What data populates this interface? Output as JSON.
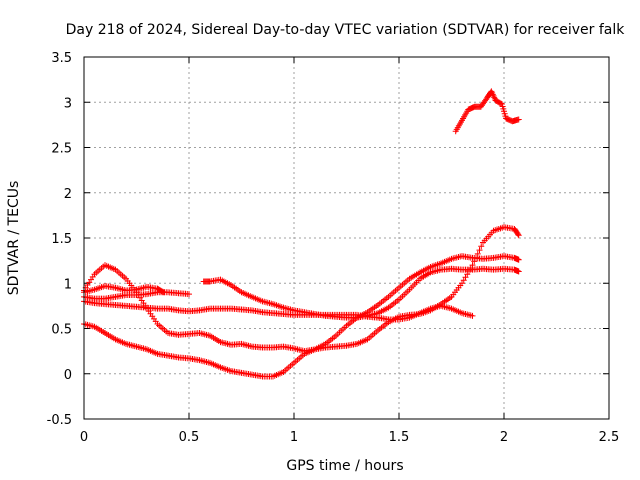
{
  "chart_data": {
    "type": "scatter",
    "title": "Day 218 of 2024, Sidereal Day-to-day VTEC variation (SDTVAR) for receiver falk",
    "xlabel": "GPS time / hours",
    "ylabel": "SDTVAR / TECUs",
    "xlim": [
      0,
      2.5
    ],
    "ylim": [
      -0.5,
      3.5
    ],
    "xticks": [
      "0",
      "0.5",
      "1",
      "1.5",
      "2",
      "2.5"
    ],
    "yticks": [
      "-0.5",
      "0",
      "0.5",
      "1",
      "1.5",
      "2",
      "2.5",
      "3",
      "3.5"
    ],
    "grid": true,
    "marker": "+",
    "color": "#ff0000",
    "series": [
      {
        "name": "track-1",
        "points": [
          [
            0,
            0.55
          ],
          [
            0.05,
            0.52
          ],
          [
            0.1,
            0.45
          ],
          [
            0.15,
            0.38
          ],
          [
            0.2,
            0.33
          ],
          [
            0.25,
            0.3
          ],
          [
            0.3,
            0.27
          ],
          [
            0.35,
            0.22
          ],
          [
            0.4,
            0.2
          ],
          [
            0.45,
            0.18
          ],
          [
            0.5,
            0.17
          ],
          [
            0.55,
            0.15
          ],
          [
            0.6,
            0.12
          ],
          [
            0.65,
            0.07
          ],
          [
            0.7,
            0.03
          ],
          [
            0.75,
            0.01
          ],
          [
            0.8,
            -0.01
          ],
          [
            0.85,
            -0.03
          ],
          [
            0.9,
            -0.03
          ],
          [
            0.95,
            0.02
          ],
          [
            1.0,
            0.12
          ],
          [
            1.05,
            0.22
          ],
          [
            1.1,
            0.27
          ],
          [
            1.15,
            0.29
          ],
          [
            1.2,
            0.3
          ],
          [
            1.25,
            0.31
          ],
          [
            1.3,
            0.33
          ],
          [
            1.35,
            0.38
          ],
          [
            1.4,
            0.48
          ],
          [
            1.45,
            0.57
          ],
          [
            1.5,
            0.63
          ],
          [
            1.55,
            0.65
          ],
          [
            1.6,
            0.66
          ],
          [
            1.65,
            0.7
          ],
          [
            1.7,
            0.77
          ],
          [
            1.75,
            0.85
          ],
          [
            1.8,
            1.0
          ],
          [
            1.85,
            1.2
          ],
          [
            1.9,
            1.45
          ],
          [
            1.95,
            1.58
          ],
          [
            2.0,
            1.62
          ],
          [
            2.05,
            1.6
          ],
          [
            2.07,
            1.53
          ]
        ]
      },
      {
        "name": "track-2",
        "points": [
          [
            0,
            0.92
          ],
          [
            0.05,
            1.1
          ],
          [
            0.1,
            1.2
          ],
          [
            0.15,
            1.15
          ],
          [
            0.2,
            1.05
          ],
          [
            0.25,
            0.9
          ],
          [
            0.3,
            0.72
          ],
          [
            0.35,
            0.55
          ],
          [
            0.4,
            0.45
          ],
          [
            0.45,
            0.43
          ],
          [
            0.5,
            0.44
          ],
          [
            0.55,
            0.45
          ],
          [
            0.6,
            0.42
          ],
          [
            0.65,
            0.35
          ],
          [
            0.7,
            0.32
          ],
          [
            0.75,
            0.33
          ],
          [
            0.8,
            0.3
          ],
          [
            0.85,
            0.29
          ],
          [
            0.9,
            0.29
          ],
          [
            0.95,
            0.3
          ],
          [
            1.0,
            0.28
          ],
          [
            1.05,
            0.25
          ],
          [
            1.1,
            0.27
          ],
          [
            1.15,
            0.33
          ],
          [
            1.2,
            0.42
          ],
          [
            1.25,
            0.53
          ],
          [
            1.3,
            0.62
          ],
          [
            1.35,
            0.68
          ],
          [
            1.4,
            0.76
          ],
          [
            1.45,
            0.85
          ],
          [
            1.5,
            0.95
          ],
          [
            1.55,
            1.05
          ],
          [
            1.6,
            1.12
          ],
          [
            1.65,
            1.18
          ],
          [
            1.7,
            1.22
          ],
          [
            1.75,
            1.27
          ],
          [
            1.8,
            1.3
          ],
          [
            1.85,
            1.28
          ],
          [
            1.9,
            1.27
          ],
          [
            1.95,
            1.28
          ],
          [
            2.0,
            1.3
          ],
          [
            2.05,
            1.28
          ],
          [
            2.07,
            1.26
          ]
        ]
      },
      {
        "name": "track-3",
        "points": [
          [
            0,
            0.85
          ],
          [
            0.05,
            0.83
          ],
          [
            0.1,
            0.83
          ],
          [
            0.15,
            0.85
          ],
          [
            0.2,
            0.87
          ],
          [
            0.25,
            0.87
          ],
          [
            0.3,
            0.88
          ],
          [
            0.35,
            0.9
          ],
          [
            0.4,
            0.9
          ],
          [
            0.45,
            0.89
          ],
          [
            0.5,
            0.88
          ]
        ]
      },
      {
        "name": "track-4",
        "points": [
          [
            0.57,
            1.02
          ],
          [
            0.6,
            1.02
          ],
          [
            0.65,
            1.04
          ],
          [
            0.7,
            0.98
          ],
          [
            0.75,
            0.9
          ],
          [
            0.8,
            0.85
          ],
          [
            0.85,
            0.8
          ],
          [
            0.9,
            0.77
          ],
          [
            0.95,
            0.73
          ],
          [
            1.0,
            0.7
          ],
          [
            1.05,
            0.68
          ],
          [
            1.1,
            0.66
          ],
          [
            1.15,
            0.64
          ],
          [
            1.2,
            0.63
          ],
          [
            1.25,
            0.62
          ],
          [
            1.3,
            0.62
          ],
          [
            1.35,
            0.64
          ],
          [
            1.4,
            0.67
          ],
          [
            1.45,
            0.73
          ],
          [
            1.5,
            0.82
          ],
          [
            1.55,
            0.93
          ],
          [
            1.6,
            1.05
          ],
          [
            1.65,
            1.12
          ],
          [
            1.7,
            1.15
          ],
          [
            1.75,
            1.16
          ],
          [
            1.8,
            1.15
          ],
          [
            1.85,
            1.15
          ],
          [
            1.9,
            1.16
          ],
          [
            1.95,
            1.15
          ],
          [
            2.0,
            1.16
          ],
          [
            2.05,
            1.15
          ],
          [
            2.07,
            1.13
          ]
        ]
      },
      {
        "name": "track-5",
        "points": [
          [
            0,
            0.8
          ],
          [
            0.05,
            0.78
          ],
          [
            0.1,
            0.77
          ],
          [
            0.15,
            0.76
          ],
          [
            0.2,
            0.75
          ],
          [
            0.25,
            0.74
          ],
          [
            0.3,
            0.73
          ],
          [
            0.35,
            0.72
          ],
          [
            0.4,
            0.72
          ],
          [
            0.45,
            0.7
          ],
          [
            0.5,
            0.69
          ],
          [
            0.55,
            0.7
          ],
          [
            0.6,
            0.72
          ],
          [
            0.65,
            0.72
          ],
          [
            0.7,
            0.72
          ],
          [
            0.75,
            0.71
          ],
          [
            0.8,
            0.7
          ],
          [
            0.85,
            0.68
          ],
          [
            0.9,
            0.67
          ],
          [
            0.95,
            0.66
          ],
          [
            1.0,
            0.65
          ],
          [
            1.05,
            0.65
          ],
          [
            1.1,
            0.65
          ],
          [
            1.15,
            0.65
          ],
          [
            1.2,
            0.65
          ],
          [
            1.25,
            0.65
          ],
          [
            1.3,
            0.65
          ],
          [
            1.35,
            0.63
          ],
          [
            1.4,
            0.62
          ],
          [
            1.45,
            0.6
          ],
          [
            1.5,
            0.6
          ],
          [
            1.55,
            0.62
          ],
          [
            1.6,
            0.67
          ],
          [
            1.65,
            0.72
          ],
          [
            1.7,
            0.75
          ],
          [
            1.75,
            0.72
          ],
          [
            1.8,
            0.67
          ],
          [
            1.85,
            0.64
          ]
        ]
      },
      {
        "name": "track-6",
        "points": [
          [
            0,
            0.9
          ],
          [
            0.05,
            0.93
          ],
          [
            0.1,
            0.97
          ],
          [
            0.15,
            0.95
          ],
          [
            0.2,
            0.92
          ],
          [
            0.25,
            0.93
          ],
          [
            0.3,
            0.96
          ],
          [
            0.35,
            0.94
          ],
          [
            0.38,
            0.9
          ]
        ]
      },
      {
        "name": "track-7",
        "points": [
          [
            1.77,
            2.68
          ],
          [
            1.8,
            2.8
          ],
          [
            1.83,
            2.92
          ],
          [
            1.86,
            2.95
          ],
          [
            1.89,
            2.95
          ],
          [
            1.92,
            3.05
          ],
          [
            1.94,
            3.12
          ],
          [
            1.96,
            3.02
          ],
          [
            1.99,
            2.98
          ],
          [
            2.01,
            2.82
          ],
          [
            2.04,
            2.79
          ],
          [
            2.07,
            2.81
          ]
        ]
      }
    ]
  }
}
